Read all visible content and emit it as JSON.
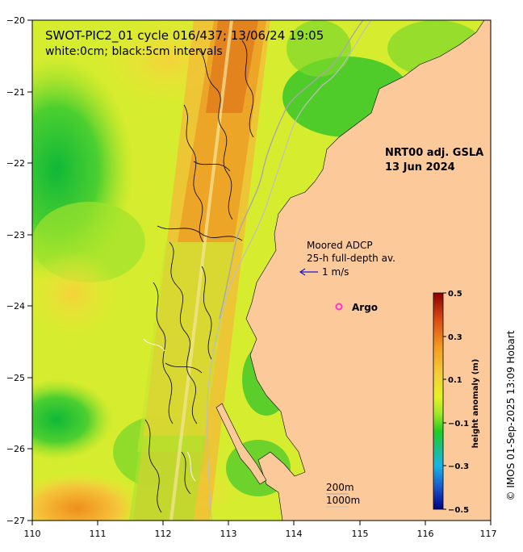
{
  "title": {
    "line1": "SWOT-PIC2_01 cycle 016/437; 13/06/24 19:05",
    "line2": "white:0cm; black:5cm intervals"
  },
  "product": {
    "line1": "NRT00 adj. GSLA",
    "line2": "13 Jun 2024"
  },
  "adcp": {
    "line1": "Moored ADCP",
    "line2": "25-h full-depth av.",
    "scale_label": "1 m/s",
    "arrow_color": "#1a1acc"
  },
  "argo": {
    "label": "Argo",
    "marker_color": "#ff33cc"
  },
  "isobaths": {
    "line1": "200m",
    "line2": "1000m"
  },
  "colorbar": {
    "label": "height anomaly (m)",
    "ticks": [
      "0.5",
      "0.3",
      "0.1",
      "−0.1",
      "−0.3",
      "−0.5"
    ],
    "range": [
      -0.5,
      0.5
    ]
  },
  "axes": {
    "x_ticks": [
      "110",
      "111",
      "112",
      "113",
      "114",
      "115",
      "116",
      "117"
    ],
    "y_ticks": [
      "−20",
      "−21",
      "−22",
      "−23",
      "−24",
      "−25",
      "−26",
      "−27"
    ],
    "lon_range": [
      110,
      117
    ],
    "lat_range": [
      -27,
      -20
    ]
  },
  "credit": "© IMOS 01-Sep-2025 13:09 Hobart",
  "colors": {
    "land": "#fcc99b",
    "coast_line": "#a8a8a8",
    "frame": "#000000"
  }
}
